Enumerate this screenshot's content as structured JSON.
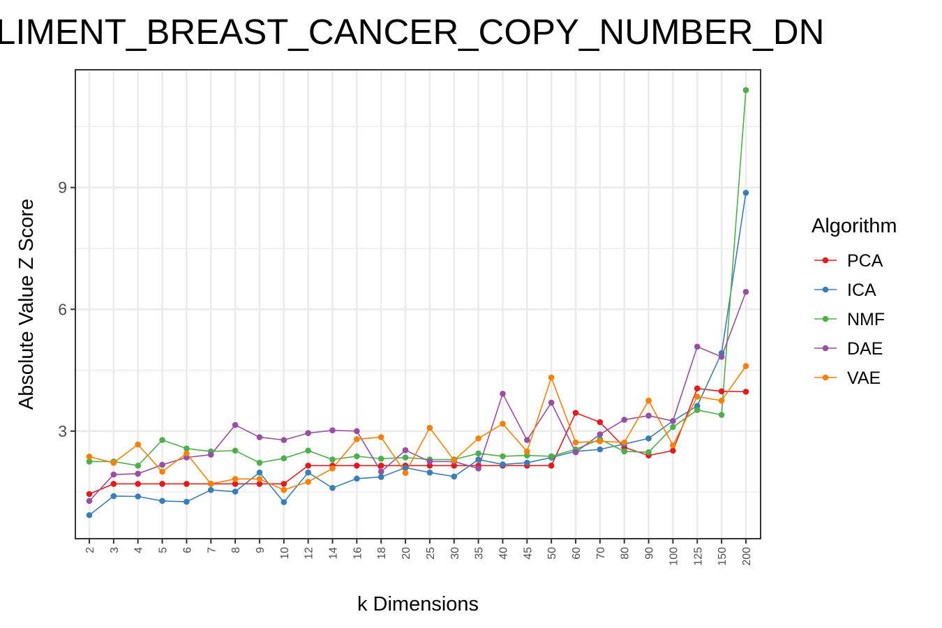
{
  "chart_data": {
    "type": "line",
    "title": "LIMENT_BREAST_CANCER_COPY_NUMBER_DN",
    "xlabel": "k Dimensions",
    "ylabel": "Absolute Value Z Score",
    "categories": [
      "2",
      "3",
      "4",
      "5",
      "6",
      "7",
      "8",
      "9",
      "10",
      "12",
      "14",
      "16",
      "18",
      "20",
      "25",
      "30",
      "35",
      "40",
      "45",
      "50",
      "60",
      "70",
      "80",
      "90",
      "100",
      "125",
      "150",
      "200"
    ],
    "yticks": [
      3,
      6,
      9
    ],
    "ylim": [
      0.35,
      11.9
    ],
    "grid": true,
    "legend": {
      "title": "Algorithm",
      "position": "right"
    },
    "series": [
      {
        "name": "PCA",
        "color": "#e41a1c",
        "values": [
          1.45,
          1.7,
          1.7,
          1.7,
          1.7,
          1.7,
          1.7,
          1.7,
          1.7,
          2.15,
          2.15,
          2.15,
          2.15,
          2.15,
          2.15,
          2.15,
          2.15,
          2.15,
          2.15,
          2.15,
          3.45,
          3.22,
          2.6,
          2.4,
          2.52,
          4.05,
          3.98,
          3.97
        ]
      },
      {
        "name": "ICA",
        "color": "#377eb8",
        "values": [
          0.93,
          1.4,
          1.39,
          1.28,
          1.26,
          1.55,
          1.51,
          1.98,
          1.25,
          1.98,
          1.6,
          1.83,
          1.87,
          2.1,
          1.98,
          1.88,
          2.3,
          2.18,
          2.22,
          2.35,
          2.5,
          2.55,
          2.68,
          2.82,
          3.25,
          3.62,
          4.92,
          8.87
        ]
      },
      {
        "name": "NMF",
        "color": "#4daf4a",
        "values": [
          2.25,
          2.25,
          2.15,
          2.78,
          2.57,
          2.5,
          2.52,
          2.22,
          2.33,
          2.52,
          2.3,
          2.38,
          2.32,
          2.35,
          2.3,
          2.3,
          2.45,
          2.38,
          2.4,
          2.38,
          2.55,
          2.8,
          2.5,
          2.48,
          3.1,
          3.52,
          3.4,
          11.4
        ]
      },
      {
        "name": "DAE",
        "color": "#984ea3",
        "values": [
          1.28,
          1.93,
          1.95,
          2.17,
          2.35,
          2.42,
          3.15,
          2.85,
          2.78,
          2.95,
          3.02,
          3.0,
          2.0,
          2.53,
          2.25,
          2.25,
          2.08,
          3.92,
          2.78,
          3.7,
          2.48,
          2.92,
          3.28,
          3.38,
          3.25,
          5.08,
          4.83,
          6.43
        ]
      },
      {
        "name": "VAE",
        "color": "#ff7f00",
        "values": [
          2.37,
          2.22,
          2.67,
          2.0,
          2.45,
          1.7,
          1.82,
          1.82,
          1.55,
          1.75,
          2.08,
          2.8,
          2.85,
          1.97,
          3.08,
          2.28,
          2.82,
          3.18,
          2.5,
          4.32,
          2.72,
          2.75,
          2.72,
          3.75,
          2.65,
          3.85,
          3.75,
          4.6
        ]
      }
    ]
  }
}
